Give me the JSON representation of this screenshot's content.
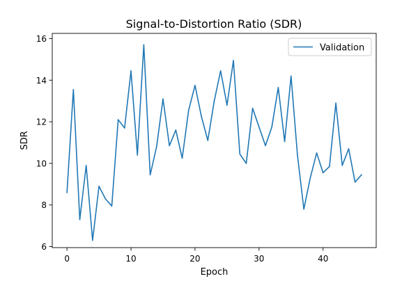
{
  "chart_data": {
    "type": "line",
    "title": "Signal-to-Distortion Ratio (SDR)",
    "xlabel": "Epoch",
    "ylabel": "SDR",
    "xlim": [
      -2.3,
      48.3
    ],
    "ylim": [
      5.95,
      16.25
    ],
    "xticks": [
      0,
      10,
      20,
      30,
      40
    ],
    "xtick_labels": [
      "0",
      "10",
      "20",
      "30",
      "40"
    ],
    "yticks": [
      6,
      8,
      10,
      12,
      14,
      16
    ],
    "ytick_labels": [
      "6",
      "8",
      "10",
      "12",
      "14",
      "16"
    ],
    "grid": false,
    "legend_position": "upper right",
    "x": [
      0,
      1,
      2,
      3,
      4,
      5,
      6,
      7,
      8,
      9,
      10,
      11,
      12,
      13,
      14,
      15,
      16,
      17,
      18,
      19,
      20,
      21,
      22,
      23,
      24,
      25,
      26,
      27,
      28,
      29,
      30,
      31,
      32,
      33,
      34,
      35,
      36,
      37,
      38,
      39,
      40,
      41,
      42,
      43,
      44,
      45,
      46
    ],
    "series": [
      {
        "name": "Validation",
        "color": "#1f77b4",
        "values": [
          8.6,
          13.55,
          7.3,
          9.9,
          6.3,
          8.9,
          8.3,
          7.95,
          12.1,
          11.7,
          14.45,
          10.4,
          15.7,
          9.45,
          10.8,
          13.1,
          10.85,
          11.6,
          10.25,
          12.55,
          13.75,
          12.25,
          11.1,
          13.0,
          14.45,
          12.8,
          14.95,
          10.45,
          10.0,
          12.65,
          11.75,
          10.85,
          11.75,
          13.65,
          11.05,
          14.2,
          10.4,
          7.8,
          9.3,
          10.5,
          9.55,
          9.85,
          12.9,
          9.9,
          10.7,
          9.1,
          9.45
        ]
      }
    ]
  }
}
